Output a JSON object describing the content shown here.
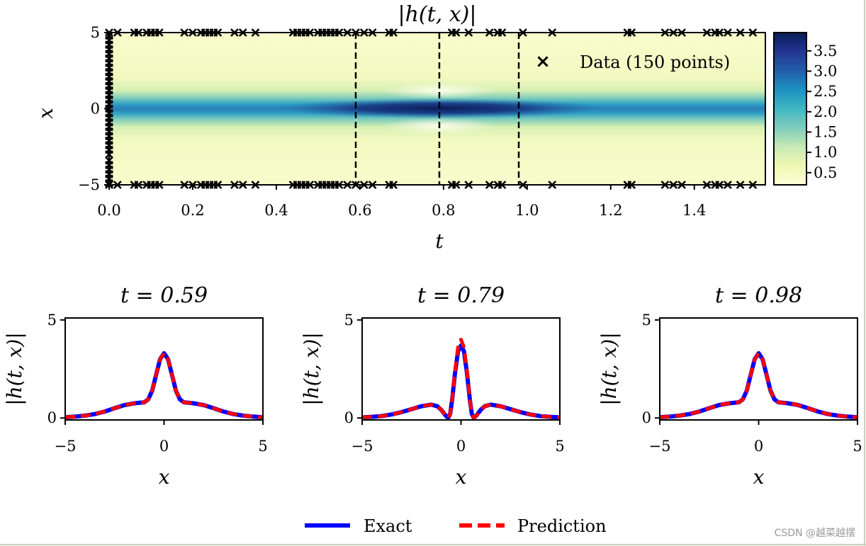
{
  "chart_data": [
    {
      "type": "heatmap",
      "title": "|h(t, x)|",
      "xlabel": "t",
      "ylabel": "x",
      "xlim": [
        0,
        1.57
      ],
      "ylim": [
        -5,
        5
      ],
      "xticks": [
        "0.0",
        "0.2",
        "0.4",
        "0.6",
        "0.8",
        "1.0",
        "1.2",
        "1.4"
      ],
      "xtick_values": [
        0,
        0.2,
        0.4,
        0.6,
        0.8,
        1.0,
        1.2,
        1.4
      ],
      "yticks": [
        "−5",
        "0",
        "5"
      ],
      "ytick_values": [
        -5,
        0,
        5
      ],
      "colorbar": {
        "range": [
          0.2,
          3.95
        ],
        "ticks": [
          "0.5",
          "1.0",
          "1.5",
          "2.0",
          "2.5",
          "3.0",
          "3.5"
        ],
        "tick_values": [
          0.5,
          1.0,
          1.5,
          2.0,
          2.5,
          3.0,
          3.5
        ],
        "colors": [
          "#ffffd9",
          "#edf8b1",
          "#c7e9b4",
          "#7fcdbb",
          "#41b6c4",
          "#1d91c0",
          "#225ea8",
          "#253494",
          "#081d58"
        ]
      },
      "vertical_lines_t": [
        0.59,
        0.79,
        0.98
      ],
      "legend": {
        "marker": "×",
        "label": "Data (150 points)"
      },
      "data_points": {
        "boundary_t": [
          0.0,
          0.02,
          0.06,
          0.07,
          0.09,
          0.1,
          0.11,
          0.12,
          0.18,
          0.2,
          0.22,
          0.23,
          0.24,
          0.25,
          0.26,
          0.3,
          0.32,
          0.35,
          0.44,
          0.45,
          0.46,
          0.47,
          0.48,
          0.5,
          0.51,
          0.52,
          0.53,
          0.54,
          0.55,
          0.57,
          0.59,
          0.61,
          0.63,
          0.67,
          0.68,
          0.82,
          0.83,
          0.86,
          0.91,
          0.93,
          0.94,
          0.99,
          1.06,
          1.24,
          1.25,
          1.33,
          1.35,
          1.37,
          1.43,
          1.45,
          1.46,
          1.48,
          1.51,
          1.54
        ],
        "initial_x": [
          -4.9,
          -4.6,
          -4.3,
          -4.0,
          -3.7,
          -3.4,
          -3.0,
          -2.7,
          -2.4,
          -2.1,
          -1.8,
          -1.5,
          -1.2,
          -0.9,
          -0.6,
          -0.3,
          0.0,
          0.3,
          0.6,
          0.9,
          1.2,
          1.5,
          1.8,
          2.1,
          2.4,
          2.7,
          3.0,
          3.3,
          3.6,
          3.9,
          4.2,
          4.5,
          4.8
        ]
      }
    },
    {
      "type": "line",
      "title": "t = 0.59",
      "t": 0.59,
      "xlabel": "x",
      "ylabel": "|h(t, x)|",
      "xlim": [
        -5,
        5
      ],
      "ylim": [
        -0.1,
        5.1
      ],
      "xticks": [
        "−5",
        "0",
        "5"
      ],
      "xtick_values": [
        -5,
        0,
        5
      ],
      "yticks": [
        "0",
        "5"
      ],
      "ytick_values": [
        0,
        5
      ],
      "series": [
        {
          "name": "Exact",
          "color": "#0000ff",
          "style": "solid",
          "x": [
            -5,
            -4.5,
            -4,
            -3.5,
            -3,
            -2.5,
            -2,
            -1.5,
            -1.2,
            -1,
            -0.8,
            -0.6,
            -0.4,
            -0.2,
            0,
            0.2,
            0.4,
            0.6,
            0.8,
            1,
            1.2,
            1.5,
            2,
            2.5,
            3,
            3.5,
            4,
            4.5,
            5
          ],
          "y": [
            0.04,
            0.07,
            0.12,
            0.2,
            0.33,
            0.5,
            0.66,
            0.75,
            0.78,
            0.8,
            0.95,
            1.4,
            2.2,
            3.0,
            3.3,
            3.0,
            2.2,
            1.4,
            0.95,
            0.8,
            0.78,
            0.75,
            0.66,
            0.5,
            0.33,
            0.2,
            0.12,
            0.07,
            0.04
          ]
        },
        {
          "name": "Prediction",
          "color": "#ff0000",
          "style": "dashed",
          "x": [
            -5,
            -4.5,
            -4,
            -3.5,
            -3,
            -2.5,
            -2,
            -1.5,
            -1.2,
            -1,
            -0.8,
            -0.6,
            -0.4,
            -0.2,
            0,
            0.2,
            0.4,
            0.6,
            0.8,
            1,
            1.2,
            1.5,
            2,
            2.5,
            3,
            3.5,
            4,
            4.5,
            5
          ],
          "y": [
            0.04,
            0.07,
            0.12,
            0.2,
            0.33,
            0.5,
            0.66,
            0.75,
            0.78,
            0.8,
            0.95,
            1.4,
            2.2,
            3.0,
            3.3,
            3.0,
            2.2,
            1.4,
            0.95,
            0.8,
            0.78,
            0.75,
            0.66,
            0.5,
            0.33,
            0.2,
            0.12,
            0.07,
            0.04
          ]
        }
      ]
    },
    {
      "type": "line",
      "title": "t = 0.79",
      "t": 0.79,
      "xlabel": "x",
      "ylabel": "|h(t, x)|",
      "xlim": [
        -5,
        5
      ],
      "ylim": [
        -0.1,
        5.1
      ],
      "xticks": [
        "−5",
        "0",
        "5"
      ],
      "xtick_values": [
        -5,
        0,
        5
      ],
      "yticks": [
        "0",
        "5"
      ],
      "ytick_values": [
        0,
        5
      ],
      "series": [
        {
          "name": "Exact",
          "color": "#0000ff",
          "style": "solid",
          "x": [
            -5,
            -4.5,
            -4,
            -3.5,
            -3,
            -2.5,
            -2,
            -1.5,
            -1.2,
            -1,
            -0.8,
            -0.65,
            -0.55,
            -0.45,
            -0.3,
            -0.15,
            0,
            0.15,
            0.3,
            0.45,
            0.55,
            0.65,
            0.8,
            1,
            1.2,
            1.5,
            2,
            2.5,
            3,
            3.5,
            4,
            4.5,
            5
          ],
          "y": [
            0.03,
            0.06,
            0.1,
            0.18,
            0.3,
            0.45,
            0.6,
            0.68,
            0.6,
            0.42,
            0.15,
            0.0,
            0.2,
            0.9,
            2.3,
            3.4,
            3.7,
            3.4,
            2.3,
            0.9,
            0.2,
            0.0,
            0.15,
            0.42,
            0.6,
            0.68,
            0.6,
            0.45,
            0.3,
            0.18,
            0.1,
            0.06,
            0.03
          ]
        },
        {
          "name": "Prediction",
          "color": "#ff0000",
          "style": "dashed",
          "x": [
            -5,
            -4.5,
            -4,
            -3.5,
            -3,
            -2.5,
            -2,
            -1.5,
            -1.2,
            -1,
            -0.8,
            -0.65,
            -0.55,
            -0.45,
            -0.3,
            -0.15,
            0,
            0.15,
            0.3,
            0.45,
            0.55,
            0.65,
            0.8,
            1,
            1.2,
            1.5,
            2,
            2.5,
            3,
            3.5,
            4,
            4.5,
            5
          ],
          "y": [
            0.03,
            0.06,
            0.1,
            0.18,
            0.3,
            0.45,
            0.6,
            0.68,
            0.6,
            0.42,
            0.15,
            0.0,
            0.2,
            0.9,
            2.4,
            3.6,
            4.0,
            3.6,
            2.4,
            0.9,
            0.2,
            0.0,
            0.15,
            0.42,
            0.6,
            0.68,
            0.6,
            0.45,
            0.3,
            0.18,
            0.1,
            0.06,
            0.03
          ]
        }
      ]
    },
    {
      "type": "line",
      "title": "t = 0.98",
      "t": 0.98,
      "xlabel": "x",
      "ylabel": "|h(t, x)|",
      "xlim": [
        -5,
        5
      ],
      "ylim": [
        -0.1,
        5.1
      ],
      "xticks": [
        "−5",
        "0",
        "5"
      ],
      "xtick_values": [
        -5,
        0,
        5
      ],
      "yticks": [
        "0",
        "5"
      ],
      "ytick_values": [
        0,
        5
      ],
      "series": [
        {
          "name": "Exact",
          "color": "#0000ff",
          "style": "solid",
          "x": [
            -5,
            -4.5,
            -4,
            -3.5,
            -3,
            -2.5,
            -2,
            -1.5,
            -1.2,
            -1,
            -0.8,
            -0.6,
            -0.4,
            -0.2,
            0,
            0.2,
            0.4,
            0.6,
            0.8,
            1,
            1.2,
            1.5,
            2,
            2.5,
            3,
            3.5,
            4,
            4.5,
            5
          ],
          "y": [
            0.04,
            0.07,
            0.12,
            0.2,
            0.33,
            0.5,
            0.66,
            0.75,
            0.78,
            0.8,
            0.95,
            1.4,
            2.2,
            3.0,
            3.3,
            3.0,
            2.2,
            1.4,
            0.95,
            0.8,
            0.78,
            0.75,
            0.66,
            0.5,
            0.33,
            0.2,
            0.12,
            0.07,
            0.04
          ]
        },
        {
          "name": "Prediction",
          "color": "#ff0000",
          "style": "dashed",
          "x": [
            -5,
            -4.5,
            -4,
            -3.5,
            -3,
            -2.5,
            -2,
            -1.5,
            -1.2,
            -1,
            -0.8,
            -0.6,
            -0.4,
            -0.2,
            0,
            0.2,
            0.4,
            0.6,
            0.8,
            1,
            1.2,
            1.5,
            2,
            2.5,
            3,
            3.5,
            4,
            4.5,
            5
          ],
          "y": [
            0.04,
            0.07,
            0.12,
            0.2,
            0.33,
            0.5,
            0.66,
            0.75,
            0.78,
            0.8,
            0.95,
            1.4,
            2.2,
            3.0,
            3.3,
            3.0,
            2.2,
            1.4,
            0.95,
            0.8,
            0.78,
            0.75,
            0.66,
            0.5,
            0.33,
            0.2,
            0.12,
            0.07,
            0.04
          ]
        }
      ]
    }
  ],
  "legend": {
    "entries": [
      {
        "label": "Exact",
        "color": "#0000ff",
        "style": "solid"
      },
      {
        "label": "Prediction",
        "color": "#ff0000",
        "style": "dashed"
      }
    ]
  },
  "watermark": "CSDN @越菜越摆"
}
